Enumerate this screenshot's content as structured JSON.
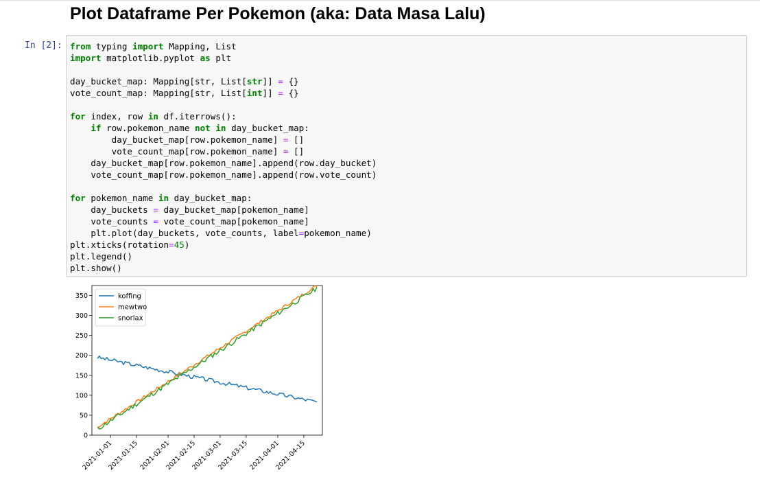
{
  "notebook": {
    "heading": "Plot Dataframe Per Pokemon (aka: Data Masa Lalu)",
    "prompt": "In [2]:",
    "code_lines": [
      [
        {
          "t": "from",
          "c": "kw"
        },
        {
          "t": " typing ",
          "c": "text"
        },
        {
          "t": "import",
          "c": "kw"
        },
        {
          "t": " Mapping, List",
          "c": "text"
        }
      ],
      [
        {
          "t": "import",
          "c": "kw"
        },
        {
          "t": " matplotlib.pyplot ",
          "c": "text"
        },
        {
          "t": "as",
          "c": "kw"
        },
        {
          "t": " plt",
          "c": "text"
        }
      ],
      [],
      [
        {
          "t": "day_bucket_map: Mapping[str, List[",
          "c": "text"
        },
        {
          "t": "str",
          "c": "kw"
        },
        {
          "t": "]] ",
          "c": "text"
        },
        {
          "t": "=",
          "c": "op"
        },
        {
          "t": " {}",
          "c": "text"
        }
      ],
      [
        {
          "t": "vote_count_map: Mapping[str, List[",
          "c": "text"
        },
        {
          "t": "int",
          "c": "kw"
        },
        {
          "t": "]] ",
          "c": "text"
        },
        {
          "t": "=",
          "c": "op"
        },
        {
          "t": " {}",
          "c": "text"
        }
      ],
      [],
      [
        {
          "t": "for",
          "c": "kw"
        },
        {
          "t": " index, row ",
          "c": "text"
        },
        {
          "t": "in",
          "c": "kw"
        },
        {
          "t": " df.iterrows():",
          "c": "text"
        }
      ],
      [
        {
          "t": "    ",
          "c": "text"
        },
        {
          "t": "if",
          "c": "kw"
        },
        {
          "t": " row.pokemon_name ",
          "c": "text"
        },
        {
          "t": "not in",
          "c": "kw"
        },
        {
          "t": " day_bucket_map:",
          "c": "text"
        }
      ],
      [
        {
          "t": "        day_bucket_map[row.pokemon_name] ",
          "c": "text"
        },
        {
          "t": "=",
          "c": "op"
        },
        {
          "t": " []",
          "c": "text"
        }
      ],
      [
        {
          "t": "        vote_count_map[row.pokemon_name] ",
          "c": "text"
        },
        {
          "t": "=",
          "c": "op"
        },
        {
          "t": " []",
          "c": "text"
        }
      ],
      [
        {
          "t": "    day_bucket_map[row.pokemon_name].append(row.day_bucket)",
          "c": "text"
        }
      ],
      [
        {
          "t": "    vote_count_map[row.pokemon_name].append(row.vote_count)",
          "c": "text"
        }
      ],
      [],
      [
        {
          "t": "for",
          "c": "kw"
        },
        {
          "t": " pokemon_name ",
          "c": "text"
        },
        {
          "t": "in",
          "c": "kw"
        },
        {
          "t": " day_bucket_map:",
          "c": "text"
        }
      ],
      [
        {
          "t": "    day_buckets ",
          "c": "text"
        },
        {
          "t": "=",
          "c": "op"
        },
        {
          "t": " day_bucket_map[pokemon_name]",
          "c": "text"
        }
      ],
      [
        {
          "t": "    vote_counts ",
          "c": "text"
        },
        {
          "t": "=",
          "c": "op"
        },
        {
          "t": " vote_count_map[pokemon_name]",
          "c": "text"
        }
      ],
      [
        {
          "t": "    plt.plot(day_buckets, vote_counts, label",
          "c": "text"
        },
        {
          "t": "=",
          "c": "op"
        },
        {
          "t": "pokemon_name)",
          "c": "text"
        }
      ],
      [
        {
          "t": "plt.xticks(rotation",
          "c": "text"
        },
        {
          "t": "=",
          "c": "op"
        },
        {
          "t": "45",
          "c": "num"
        },
        {
          "t": ")",
          "c": "text"
        }
      ],
      [
        {
          "t": "plt.legend()",
          "c": "text"
        }
      ],
      [
        {
          "t": "plt.show()",
          "c": "text"
        }
      ]
    ]
  },
  "chart_data": {
    "type": "line",
    "title": "",
    "xlabel": "",
    "ylabel": "",
    "x_start": "2020-12-25",
    "x_end": "2021-04-22",
    "xlim": [
      "2020-12-22",
      "2021-04-25"
    ],
    "ylim": [
      0,
      375
    ],
    "yticks": [
      0,
      50,
      100,
      150,
      200,
      250,
      300,
      350
    ],
    "xticks": [
      "2021-01-01",
      "2021-01-15",
      "2021-02-01",
      "2021-02-15",
      "2021-03-01",
      "2021-03-15",
      "2021-04-01",
      "2021-04-15"
    ],
    "x_rotation": 45,
    "legend_position": "top-left",
    "grid": false,
    "series": [
      {
        "name": "koffing",
        "color": "#1f77b4",
        "start": 195,
        "end": 83,
        "wiggle": 5,
        "seed": 3
      },
      {
        "name": "mewtwo",
        "color": "#ff7f0e",
        "start": 20,
        "end": 375,
        "wiggle": 4,
        "seed": 7
      },
      {
        "name": "snorlax",
        "color": "#2ca02c",
        "start": 15,
        "end": 368,
        "wiggle": 6,
        "seed": 11
      }
    ]
  }
}
